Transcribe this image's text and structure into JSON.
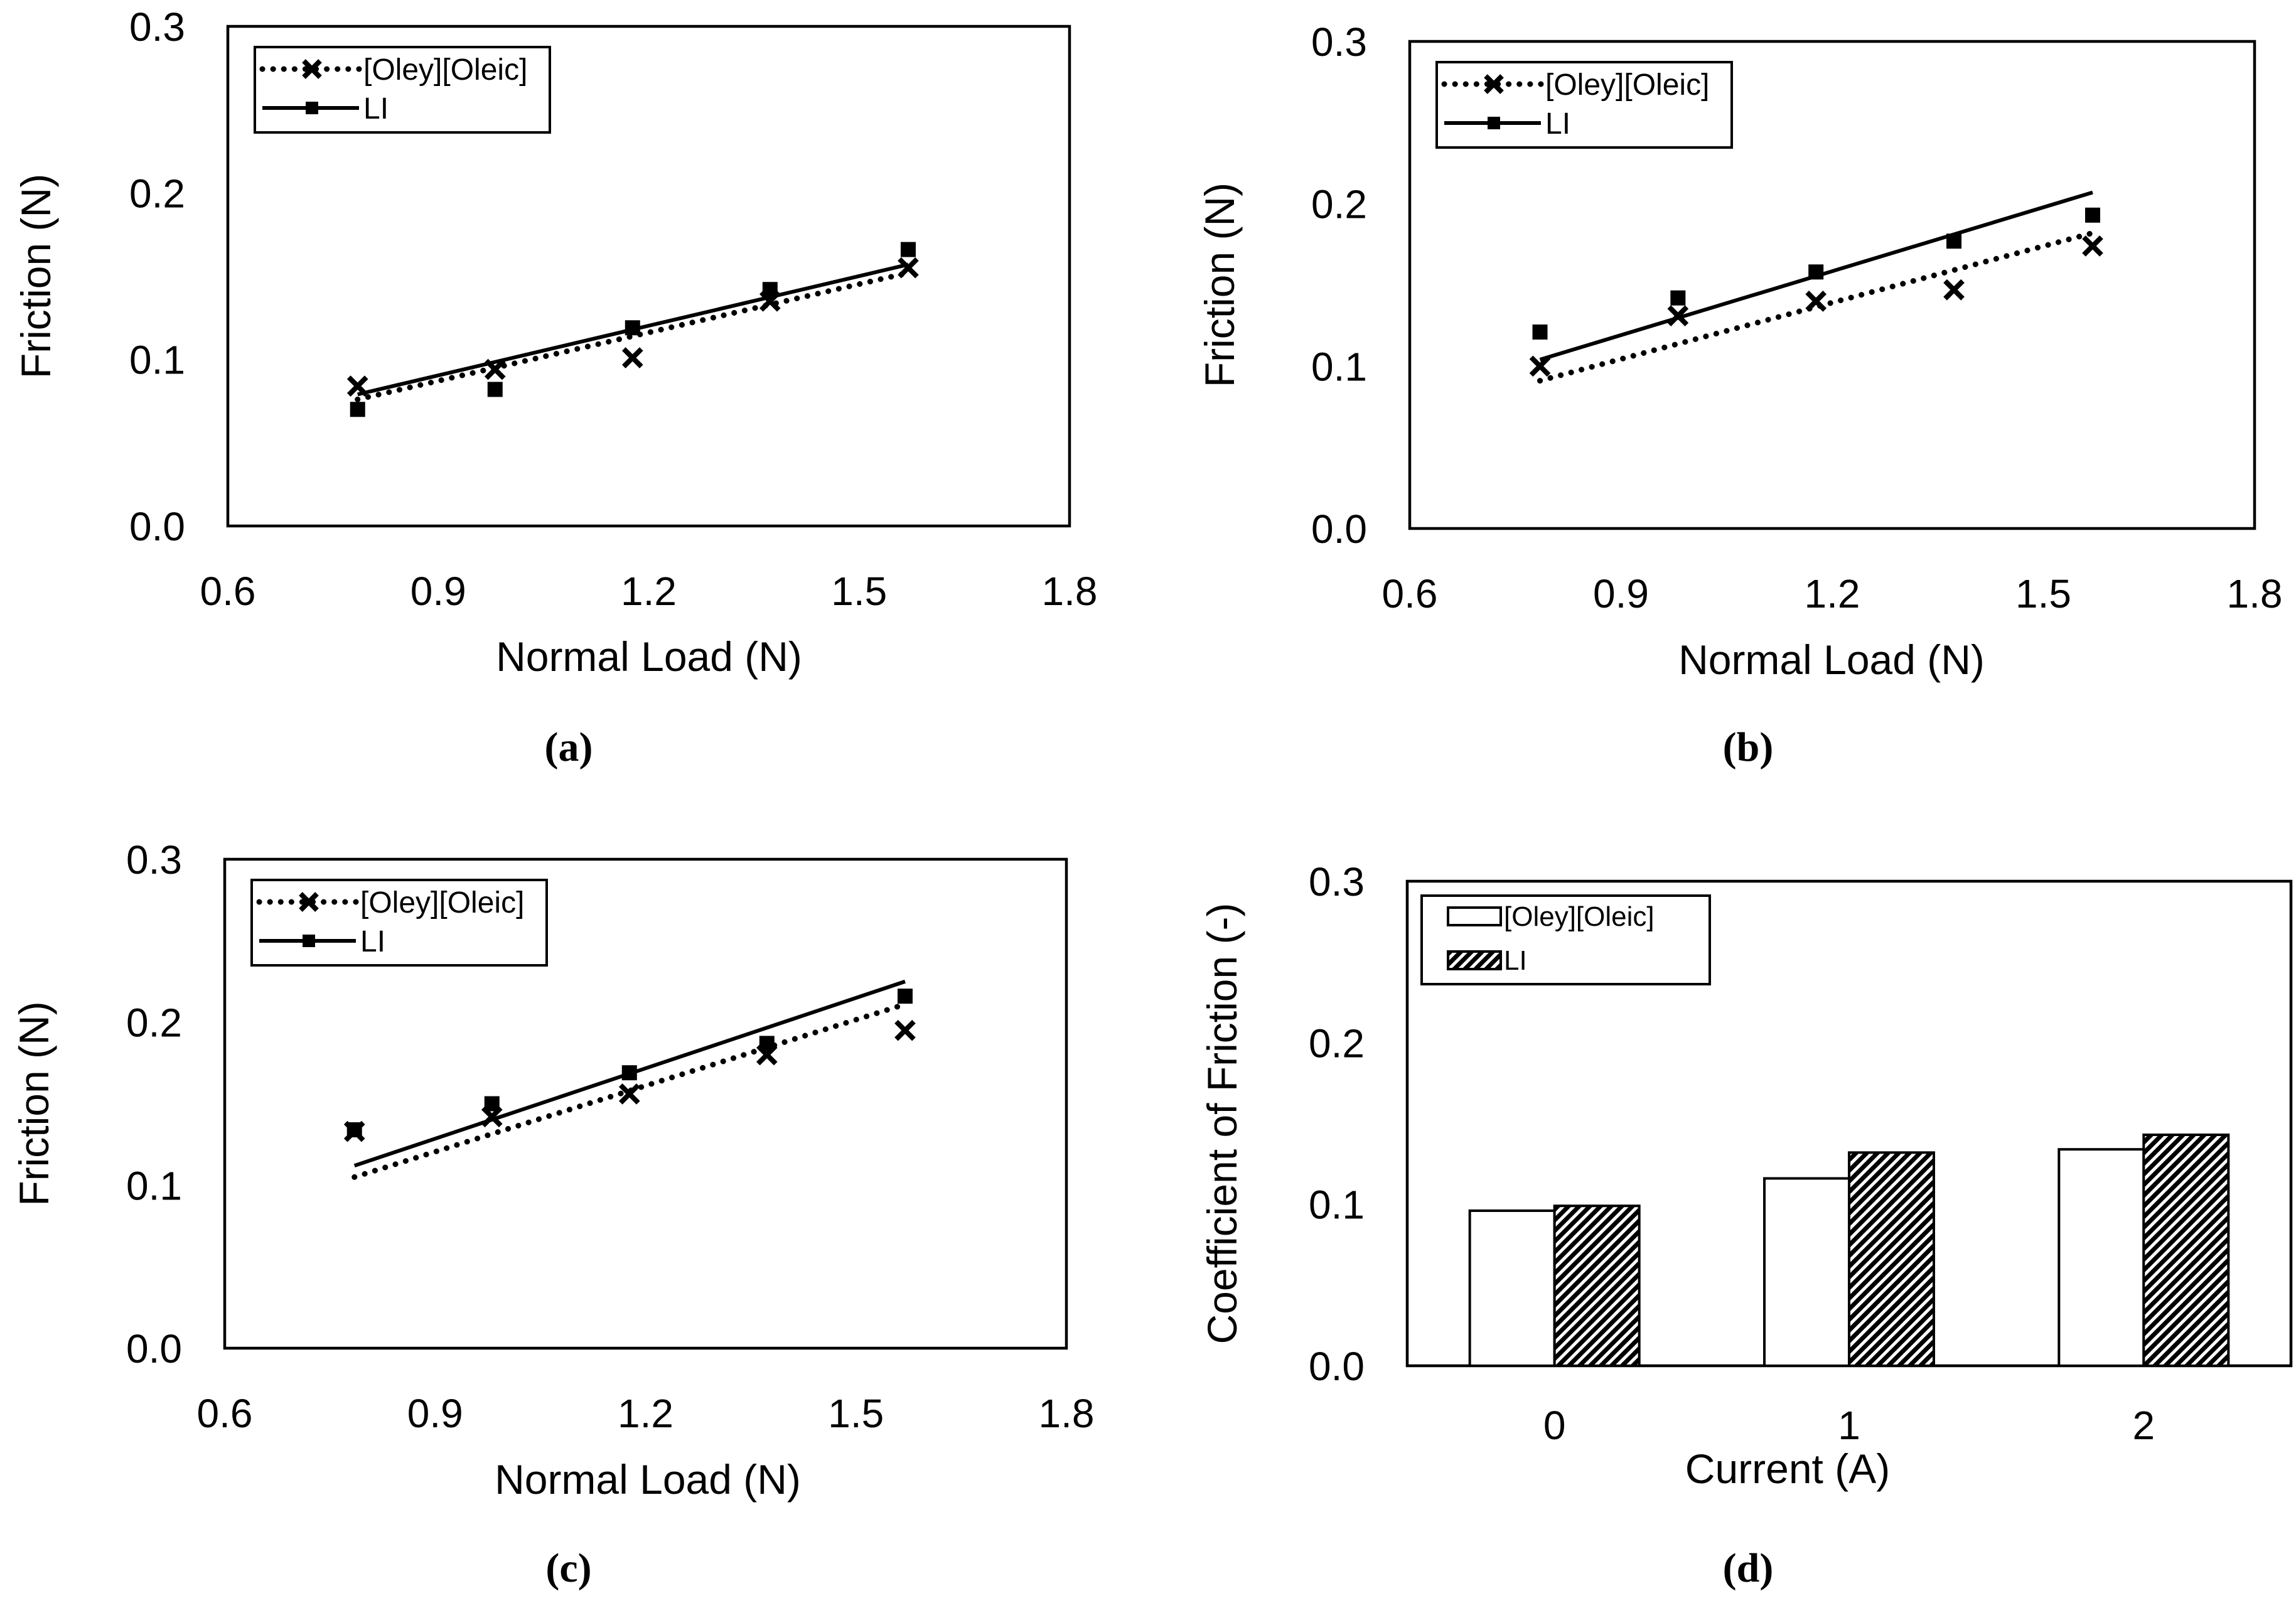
{
  "chart_data": [
    {
      "type": "scatter",
      "label": "(a)",
      "xlabel": "Normal Load (N)",
      "ylabel": "Friction (N)",
      "xlim": [
        0.6,
        1.8
      ],
      "ylim": [
        0.0,
        0.3
      ],
      "xticks": [
        "0.6",
        "0.9",
        "1.2",
        "1.5",
        "1.8"
      ],
      "yticks": [
        "0.0",
        "0.1",
        "0.2",
        "0.3"
      ],
      "grid": false,
      "legend": "top-left",
      "series": [
        {
          "name": "[Oley][Oleic]",
          "marker": "cross",
          "line": "dotted",
          "color": "#000000",
          "x": [
            0.785,
            0.981,
            1.177,
            1.373,
            1.57
          ],
          "y": [
            0.084,
            0.094,
            0.101,
            0.135,
            0.155
          ],
          "trendline": {
            "x": [
              0.785,
              1.57
            ],
            "y": [
              0.076,
              0.152
            ]
          }
        },
        {
          "name": "LI",
          "marker": "square",
          "line": "solid",
          "color": "#000000",
          "x": [
            0.785,
            0.981,
            1.177,
            1.373,
            1.57
          ],
          "y": [
            0.07,
            0.082,
            0.119,
            0.142,
            0.166
          ],
          "trendline": {
            "x": [
              0.785,
              1.57
            ],
            "y": [
              0.079,
              0.157
            ]
          }
        }
      ]
    },
    {
      "type": "scatter",
      "label": "(b)",
      "xlabel": "Normal Load (N)",
      "ylabel": "Friction (N)",
      "xlim": [
        0.6,
        1.8
      ],
      "ylim": [
        0.0,
        0.3
      ],
      "xticks": [
        "0.6",
        "0.9",
        "1.2",
        "1.5",
        "1.8"
      ],
      "yticks": [
        "0.0",
        "0.1",
        "0.2",
        "0.3"
      ],
      "grid": false,
      "legend": "top-left",
      "series": [
        {
          "name": "[Oley][Oleic]",
          "marker": "cross",
          "line": "dotted",
          "color": "#000000",
          "x": [
            0.785,
            0.981,
            1.177,
            1.373,
            1.57
          ],
          "y": [
            0.1,
            0.131,
            0.14,
            0.147,
            0.174
          ],
          "trendline": {
            "x": [
              0.785,
              1.57
            ],
            "y": [
              0.091,
              0.182
            ]
          }
        },
        {
          "name": "LI",
          "marker": "square",
          "line": "solid",
          "color": "#000000",
          "x": [
            0.785,
            0.981,
            1.177,
            1.373,
            1.57
          ],
          "y": [
            0.121,
            0.142,
            0.158,
            0.177,
            0.193
          ],
          "trendline": {
            "x": [
              0.785,
              1.57
            ],
            "y": [
              0.104,
              0.207
            ]
          }
        }
      ]
    },
    {
      "type": "scatter",
      "label": "(c)",
      "xlabel": "Normal Load (N)",
      "ylabel": "Friction (N)",
      "xlim": [
        0.6,
        1.8
      ],
      "ylim": [
        0.0,
        0.3
      ],
      "xticks": [
        "0.6",
        "0.9",
        "1.2",
        "1.5",
        "1.8"
      ],
      "yticks": [
        "0.0",
        "0.1",
        "0.2",
        "0.3"
      ],
      "grid": false,
      "legend": "top-left",
      "series": [
        {
          "name": "[Oley][Oleic]",
          "marker": "cross",
          "line": "dotted",
          "color": "#000000",
          "x": [
            0.785,
            0.981,
            1.177,
            1.373,
            1.57
          ],
          "y": [
            0.133,
            0.142,
            0.156,
            0.18,
            0.195
          ],
          "trendline": {
            "x": [
              0.785,
              1.57
            ],
            "y": [
              0.105,
              0.211
            ]
          }
        },
        {
          "name": "LI",
          "marker": "square",
          "line": "solid",
          "color": "#000000",
          "x": [
            0.785,
            0.981,
            1.177,
            1.373,
            1.57
          ],
          "y": [
            0.134,
            0.15,
            0.169,
            0.187,
            0.216
          ],
          "trendline": {
            "x": [
              0.785,
              1.57
            ],
            "y": [
              0.112,
              0.225
            ]
          }
        }
      ]
    },
    {
      "type": "bar",
      "label": "(d)",
      "xlabel": "Current (A)",
      "ylabel": "Coefficient of Friction (-)",
      "categories": [
        "0",
        "1",
        "2"
      ],
      "ylim": [
        0.0,
        0.3
      ],
      "yticks": [
        "0.0",
        "0.1",
        "0.2",
        "0.3"
      ],
      "grid": false,
      "legend": "top-left",
      "series": [
        {
          "name": "[Oley][Oleic]",
          "fill": "#ffffff",
          "values": [
            0.096,
            0.116,
            0.134
          ]
        },
        {
          "name": "LI",
          "fill": "#000000",
          "pattern": "diagonal-hatch",
          "values": [
            0.099,
            0.132,
            0.143
          ]
        }
      ]
    }
  ]
}
